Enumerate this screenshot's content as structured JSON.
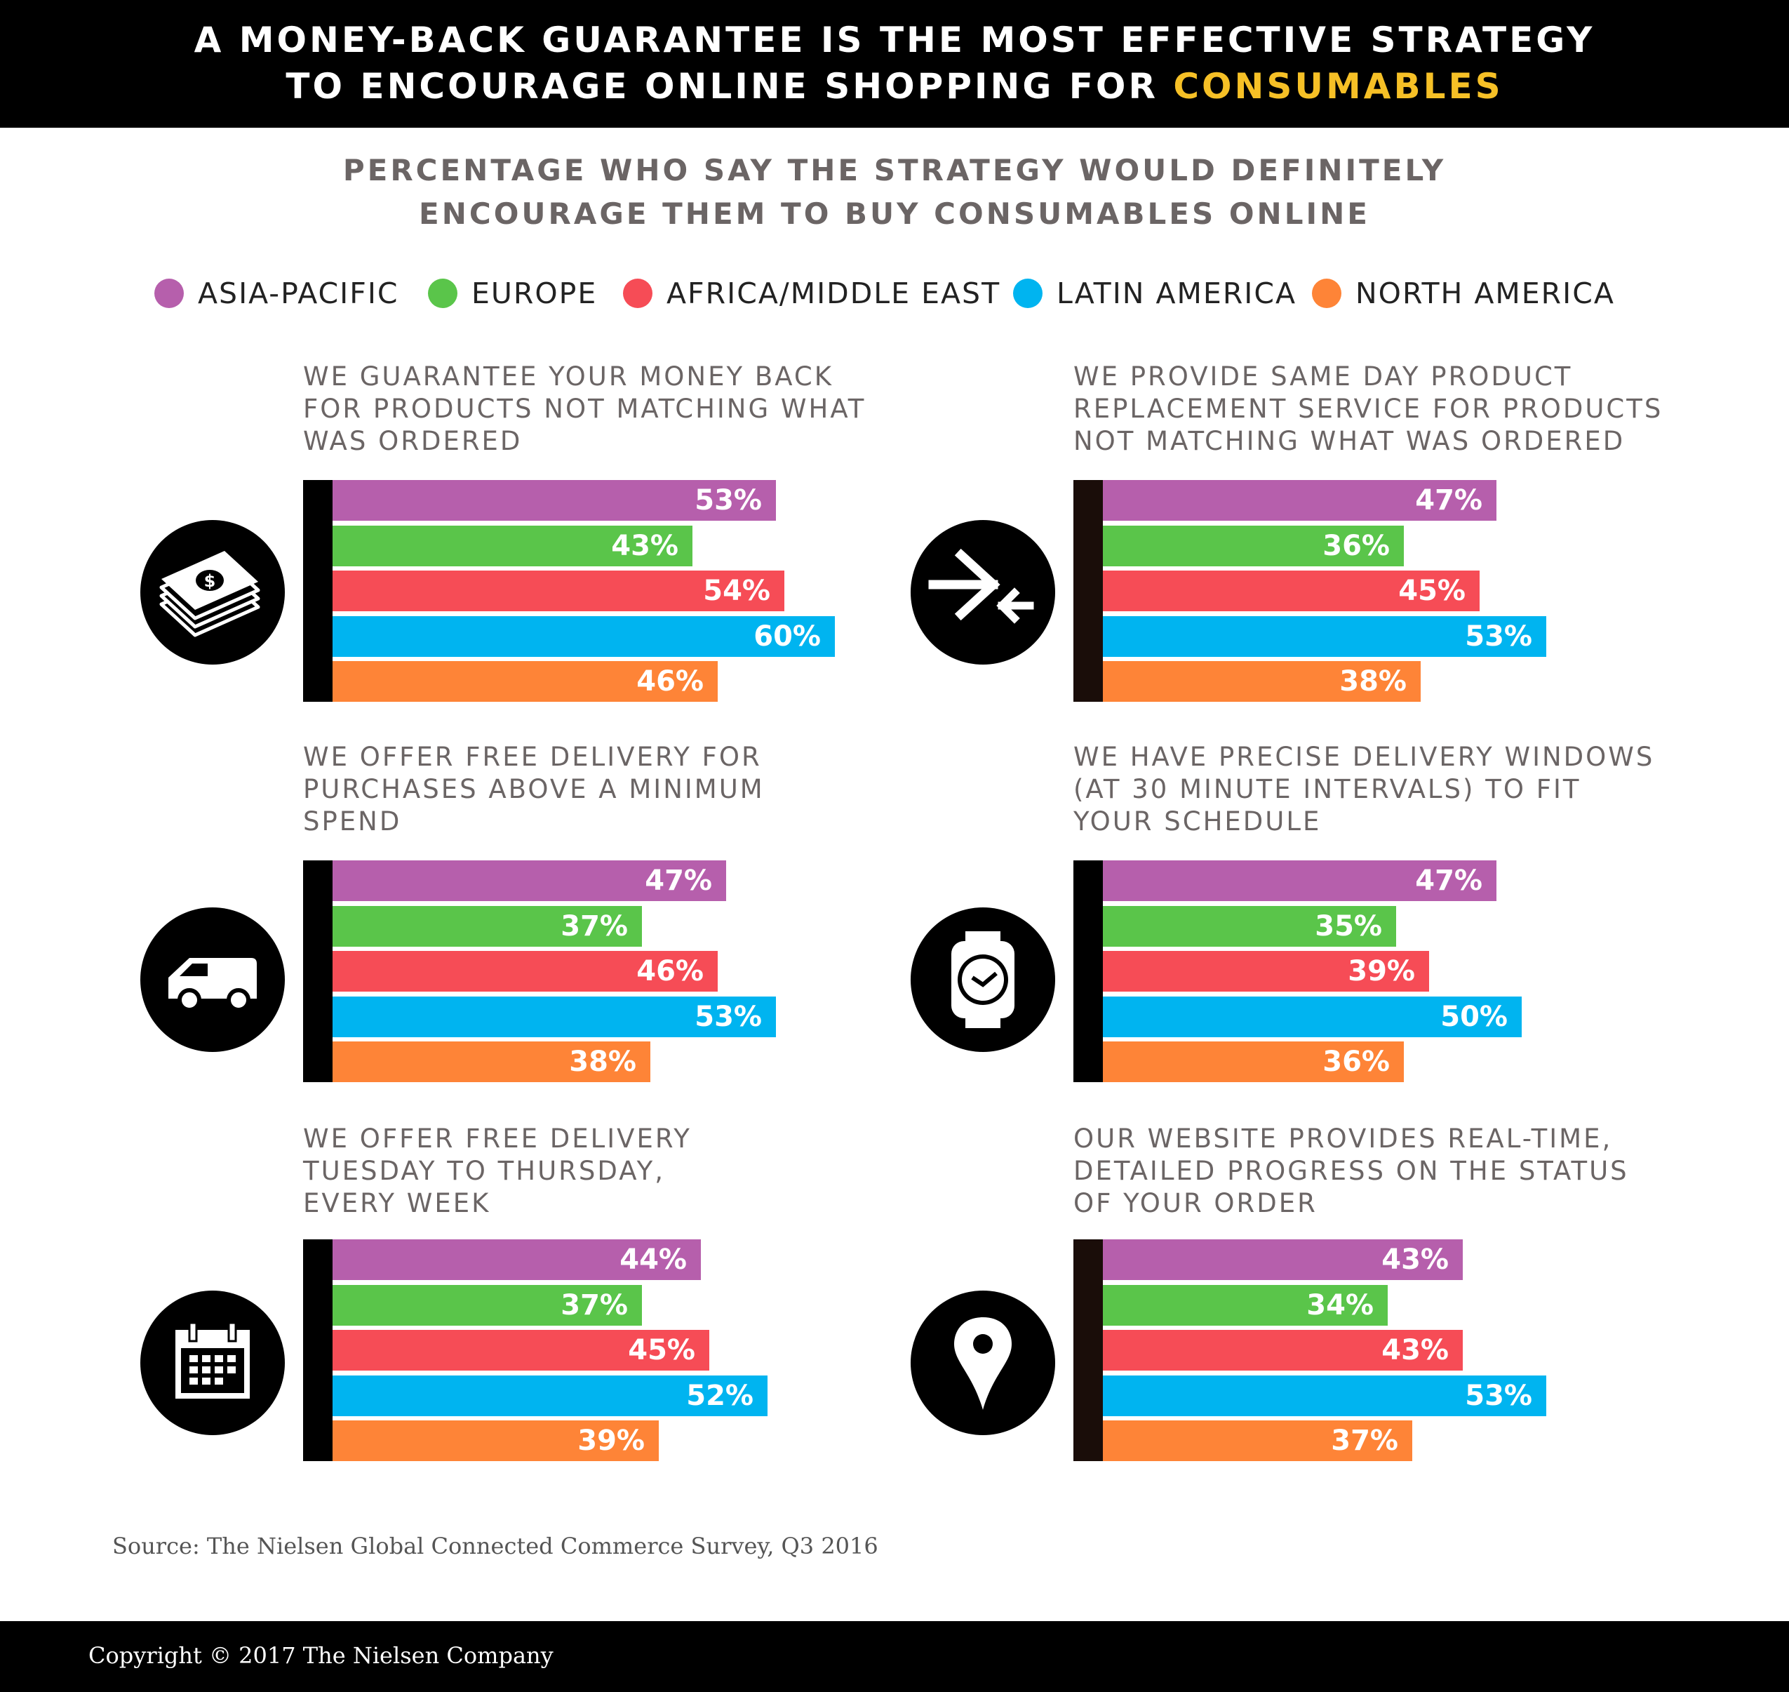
{
  "header": {
    "line1": "A MONEY-BACK GUARANTEE IS THE MOST EFFECTIVE STRATEGY",
    "line2_prefix": "TO ENCOURAGE ONLINE SHOPPING FOR ",
    "line2_highlight": "CONSUMABLES"
  },
  "subtitle": {
    "line1": "PERCENTAGE WHO SAY THE STRATEGY WOULD DEFINITELY",
    "line2": "ENCOURAGE THEM TO BUY CONSUMABLES ONLINE"
  },
  "legend": [
    {
      "label": "ASIA-PACIFIC",
      "color": "#b65fac"
    },
    {
      "label": "EUROPE",
      "color": "#5ac54a"
    },
    {
      "label": "AFRICA/MIDDLE EAST",
      "color": "#f64c56"
    },
    {
      "label": "LATIN AMERICA",
      "color": "#00b4f0"
    },
    {
      "label": "NORTH AMERICA",
      "color": "#fe8437"
    }
  ],
  "chart_data": {
    "type": "bar",
    "orientation": "horizontal",
    "series_names": [
      "ASIA-PACIFIC",
      "EUROPE",
      "AFRICA/MIDDLE EAST",
      "LATIN AMERICA",
      "NORTH AMERICA"
    ],
    "unit": "%",
    "panels": [
      {
        "title_lines": [
          "WE GUARANTEE YOUR MONEY BACK",
          "FOR PRODUCTS NOT MATCHING WHAT",
          "WAS ORDERED"
        ],
        "icon": "money-icon",
        "values": [
          53,
          43,
          54,
          60,
          46
        ],
        "labels": [
          "53%",
          "43%",
          "54%",
          "60%",
          "46%"
        ]
      },
      {
        "title_lines": [
          "WE PROVIDE SAME DAY PRODUCT",
          "REPLACEMENT SERVICE FOR PRODUCTS",
          "NOT MATCHING WHAT WAS ORDERED"
        ],
        "icon": "exchange-arrows-icon",
        "values": [
          47,
          36,
          45,
          53,
          38
        ],
        "labels": [
          "47%",
          "36%",
          "45%",
          "53%",
          "38%"
        ]
      },
      {
        "title_lines": [
          "WE OFFER FREE DELIVERY FOR",
          "PURCHASES ABOVE A MINIMUM",
          "SPEND"
        ],
        "icon": "delivery-van-icon",
        "values": [
          47,
          37,
          46,
          53,
          38
        ],
        "labels": [
          "47%",
          "37%",
          "46%",
          "53%",
          "38%"
        ]
      },
      {
        "title_lines": [
          "WE HAVE PRECISE DELIVERY WINDOWS",
          "(AT 30 MINUTE INTERVALS) TO FIT",
          "YOUR SCHEDULE"
        ],
        "icon": "watch-icon",
        "values": [
          47,
          35,
          39,
          50,
          36
        ],
        "labels": [
          "47%",
          "35%",
          "39%",
          "50%",
          "36%"
        ]
      },
      {
        "title_lines": [
          "WE OFFER FREE DELIVERY",
          "TUESDAY TO THURSDAY,",
          "EVERY WEEK"
        ],
        "icon": "calendar-icon",
        "values": [
          44,
          37,
          45,
          52,
          39
        ],
        "labels": [
          "44%",
          "37%",
          "45%",
          "52%",
          "39%"
        ]
      },
      {
        "title_lines": [
          "OUR WEBSITE PROVIDES REAL-TIME,",
          "DETAILED PROGRESS ON THE STATUS",
          "OF YOUR ORDER"
        ],
        "icon": "location-pin-icon",
        "values": [
          43,
          34,
          43,
          53,
          37
        ],
        "labels": [
          "43%",
          "34%",
          "43%",
          "53%",
          "37%"
        ]
      }
    ]
  },
  "source": "Source: The Nielsen Global Connected Commerce Survey, Q3 2016",
  "copyright": "Copyright © 2017 The Nielsen Company"
}
